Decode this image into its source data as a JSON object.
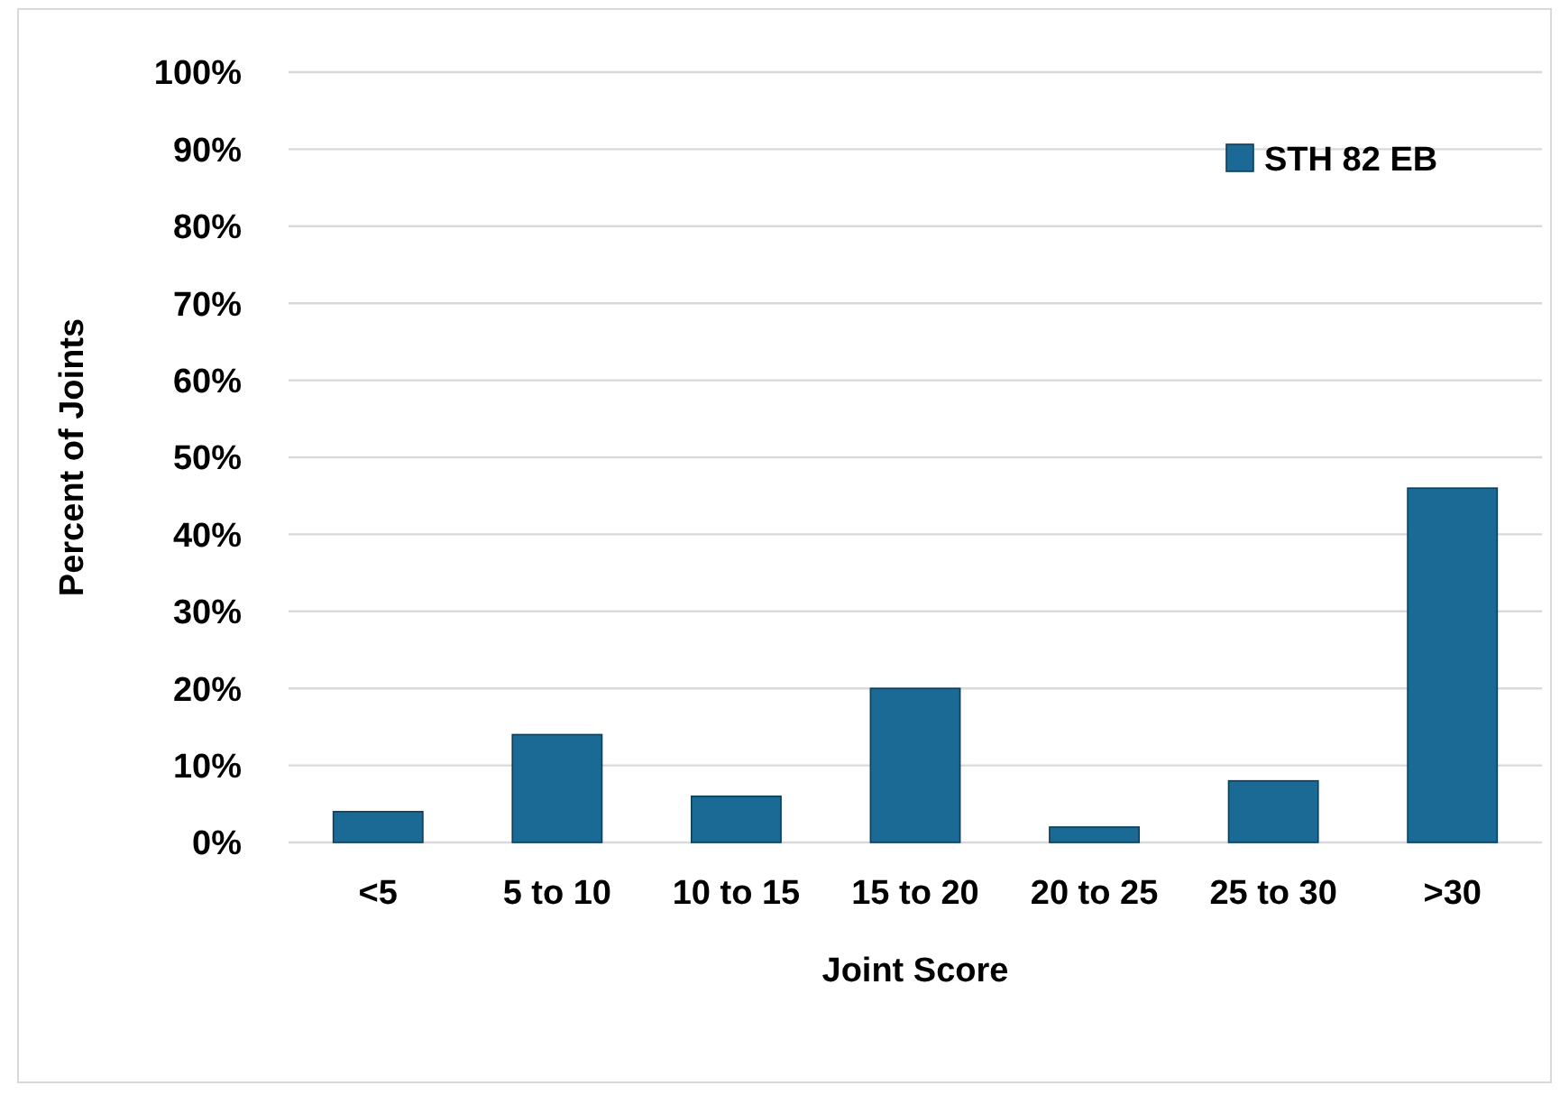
{
  "chart_data": {
    "type": "bar",
    "xlabel": "Joint Score",
    "ylabel": "Percent of Joints",
    "categories": [
      "<5",
      "5 to 10",
      "10 to 15",
      "15 to 20",
      "20 to 25",
      "25 to 30",
      ">30"
    ],
    "series": [
      {
        "name": "STH 82 EB",
        "color": "#1b6a96",
        "values": [
          4,
          14,
          6,
          20,
          2,
          8,
          46
        ]
      }
    ],
    "ylim": [
      0,
      100
    ],
    "yticks": [
      {
        "value": 0,
        "label": "0%"
      },
      {
        "value": 10,
        "label": "10%"
      },
      {
        "value": 20,
        "label": "20%"
      },
      {
        "value": 30,
        "label": "30%"
      },
      {
        "value": 40,
        "label": "40%"
      },
      {
        "value": 50,
        "label": "50%"
      },
      {
        "value": 60,
        "label": "60%"
      },
      {
        "value": 70,
        "label": "70%"
      },
      {
        "value": 80,
        "label": "80%"
      },
      {
        "value": 90,
        "label": "90%"
      },
      {
        "value": 100,
        "label": "100%"
      }
    ],
    "grid": "y",
    "legend": "top right"
  }
}
